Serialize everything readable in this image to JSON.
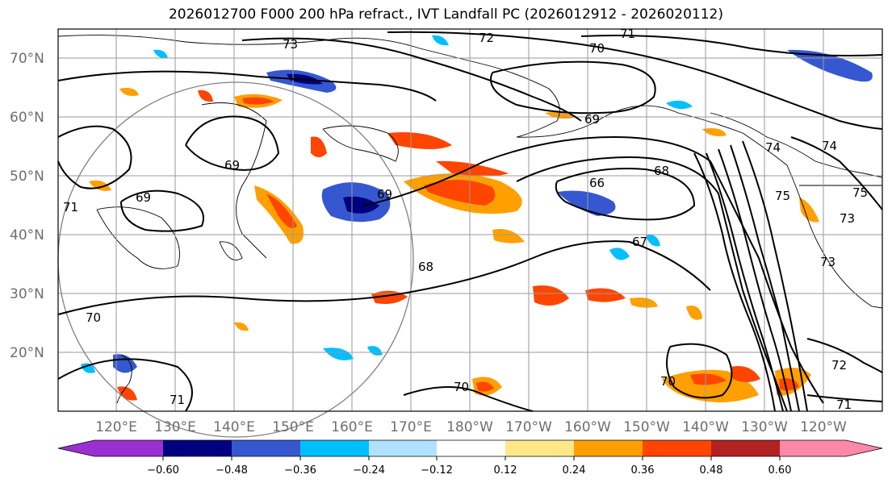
{
  "title": "2026012700 F000 200 hPa refract., IVT Landfall PC (2026012912 - 2026020112)",
  "map": {
    "lat_ticks": [
      "70°N",
      "60°N",
      "50°N",
      "40°N",
      "30°N",
      "20°N"
    ],
    "lon_ticks": [
      "120°E",
      "130°E",
      "140°E",
      "150°E",
      "160°E",
      "170°E",
      "180°W",
      "170°W",
      "160°W",
      "150°W",
      "140°W",
      "130°W",
      "120°W"
    ],
    "contour_labels": [
      "73",
      "72",
      "71",
      "70",
      "69",
      "69",
      "69",
      "69",
      "66",
      "68",
      "67",
      "68",
      "70",
      "70",
      "71",
      "70",
      "72",
      "71",
      "74",
      "75",
      "75",
      "73",
      "73",
      "74",
      "71"
    ]
  },
  "colorbar": {
    "ticks": [
      "−0.60",
      "−0.48",
      "−0.36",
      "−0.24",
      "−0.12",
      "0.12",
      "0.24",
      "0.36",
      "0.48",
      "0.60"
    ],
    "colors": [
      "#9b30d0",
      "#000080",
      "#3558d0",
      "#00bfff",
      "#b0e2ff",
      "#ffffff",
      "#ffe88a",
      "#ffa000",
      "#ff4500",
      "#b22222",
      "#ff88aa"
    ],
    "extend_colors": [
      "#9b30d0",
      "#ff88aa"
    ]
  }
}
